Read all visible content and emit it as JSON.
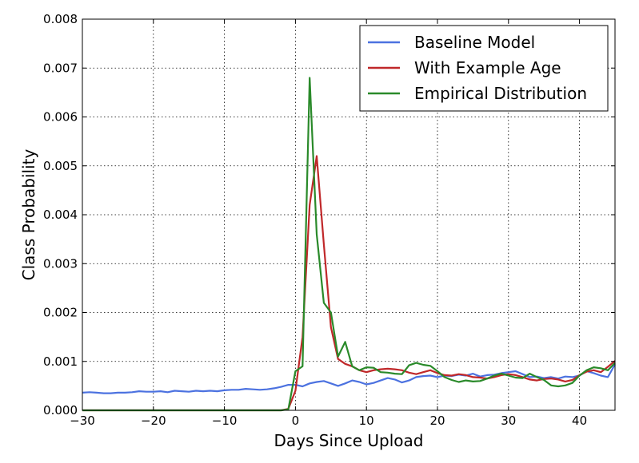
{
  "chart_data": {
    "type": "line",
    "title": "",
    "xlabel": "Days Since Upload",
    "ylabel": "Class Probability",
    "xlim": [
      -30,
      45
    ],
    "ylim": [
      0,
      0.008
    ],
    "x_ticks": [
      -30,
      -20,
      -10,
      0,
      10,
      20,
      30,
      40
    ],
    "x_tick_labels": [
      "−30",
      "−20",
      "−10",
      "0",
      "10",
      "20",
      "30",
      "40"
    ],
    "y_ticks": [
      0,
      0.001,
      0.002,
      0.003,
      0.004,
      0.005,
      0.006,
      0.007,
      0.008
    ],
    "y_tick_labels": [
      "0.000",
      "0.001",
      "0.002",
      "0.003",
      "0.004",
      "0.005",
      "0.006",
      "0.007",
      "0.008"
    ],
    "grid": true,
    "legend_position": "top-right",
    "series": [
      {
        "name": "Baseline Model",
        "color": "#4c72e0",
        "x": [
          -30,
          -29,
          -28,
          -27,
          -26,
          -25,
          -24,
          -23,
          -22,
          -21,
          -20,
          -19,
          -18,
          -17,
          -16,
          -15,
          -14,
          -13,
          -12,
          -11,
          -10,
          -9,
          -8,
          -7,
          -6,
          -5,
          -4,
          -3,
          -2,
          -1,
          0,
          1,
          2,
          3,
          4,
          5,
          6,
          7,
          8,
          9,
          10,
          11,
          12,
          13,
          14,
          15,
          16,
          17,
          18,
          19,
          20,
          21,
          22,
          23,
          24,
          25,
          26,
          27,
          28,
          29,
          30,
          31,
          32,
          33,
          34,
          35,
          36,
          37,
          38,
          39,
          40,
          41,
          42,
          43,
          44,
          45
        ],
        "y": [
          0.00036,
          0.00037,
          0.00036,
          0.00035,
          0.00035,
          0.00036,
          0.00036,
          0.00037,
          0.00039,
          0.00038,
          0.00038,
          0.00039,
          0.00037,
          0.0004,
          0.00039,
          0.00038,
          0.0004,
          0.00039,
          0.0004,
          0.00039,
          0.00041,
          0.00042,
          0.00042,
          0.00044,
          0.00043,
          0.00042,
          0.00043,
          0.00045,
          0.00048,
          0.00052,
          0.00052,
          0.00049,
          0.00055,
          0.00058,
          0.0006,
          0.00055,
          0.0005,
          0.00055,
          0.00061,
          0.00058,
          0.00053,
          0.00056,
          0.00061,
          0.00066,
          0.00063,
          0.00057,
          0.00061,
          0.00068,
          0.0007,
          0.00071,
          0.00068,
          0.00071,
          0.0007,
          0.00073,
          0.00071,
          0.00075,
          0.00069,
          0.00072,
          0.00073,
          0.00076,
          0.00078,
          0.0008,
          0.00074,
          0.00068,
          0.00069,
          0.00066,
          0.00068,
          0.00065,
          0.00069,
          0.00068,
          0.00071,
          0.0008,
          0.00076,
          0.00071,
          0.00068,
          0.00094
        ]
      },
      {
        "name": "With Example Age",
        "color": "#c0282a",
        "x": [
          -30,
          -25,
          -20,
          -15,
          -10,
          -5,
          -2,
          -1,
          0,
          1,
          2,
          3,
          4,
          5,
          6,
          7,
          8,
          9,
          10,
          11,
          12,
          13,
          14,
          15,
          16,
          17,
          18,
          19,
          20,
          21,
          22,
          23,
          24,
          25,
          26,
          27,
          28,
          29,
          30,
          31,
          32,
          33,
          34,
          35,
          36,
          37,
          38,
          39,
          40,
          41,
          42,
          43,
          44,
          45
        ],
        "y": [
          0,
          0,
          0,
          0,
          0,
          0,
          0,
          3e-05,
          0.0004,
          0.0015,
          0.0042,
          0.0052,
          0.0034,
          0.0017,
          0.00105,
          0.00095,
          0.0009,
          0.00082,
          0.00078,
          0.00082,
          0.00084,
          0.00085,
          0.00084,
          0.00082,
          0.00077,
          0.00074,
          0.00078,
          0.00082,
          0.00076,
          0.00072,
          0.00071,
          0.00074,
          0.00072,
          0.00068,
          0.00067,
          0.00065,
          0.00068,
          0.00072,
          0.00074,
          0.00072,
          0.00068,
          0.00063,
          0.00061,
          0.00064,
          0.00065,
          0.00063,
          0.00059,
          0.00062,
          0.00072,
          0.00079,
          0.00082,
          0.00078,
          0.00089,
          0.00101
        ]
      },
      {
        "name": "Empirical Distribution",
        "color": "#2a8a2a",
        "x": [
          -30,
          -25,
          -20,
          -15,
          -10,
          -5,
          -2,
          -1,
          0,
          1,
          2,
          3,
          4,
          5,
          6,
          7,
          8,
          9,
          10,
          11,
          12,
          13,
          14,
          15,
          16,
          17,
          18,
          19,
          20,
          21,
          22,
          23,
          24,
          25,
          26,
          27,
          28,
          29,
          30,
          31,
          32,
          33,
          34,
          35,
          36,
          37,
          38,
          39,
          40,
          41,
          42,
          43,
          44,
          45
        ],
        "y": [
          0,
          0,
          0,
          0,
          0,
          0,
          0,
          2e-05,
          0.0008,
          0.0009,
          0.0068,
          0.0036,
          0.0022,
          0.002,
          0.0011,
          0.0014,
          0.0009,
          0.00082,
          0.00088,
          0.00087,
          0.00078,
          0.00077,
          0.00075,
          0.00074,
          0.00092,
          0.00097,
          0.00093,
          0.00091,
          0.0008,
          0.00068,
          0.00062,
          0.00058,
          0.00061,
          0.00059,
          0.0006,
          0.00065,
          0.00071,
          0.00075,
          0.00071,
          0.00067,
          0.00066,
          0.00075,
          0.00068,
          0.00062,
          0.00051,
          0.00049,
          0.00051,
          0.00056,
          0.00071,
          0.00082,
          0.00088,
          0.00086,
          0.00082,
          0.00097
        ]
      }
    ]
  }
}
